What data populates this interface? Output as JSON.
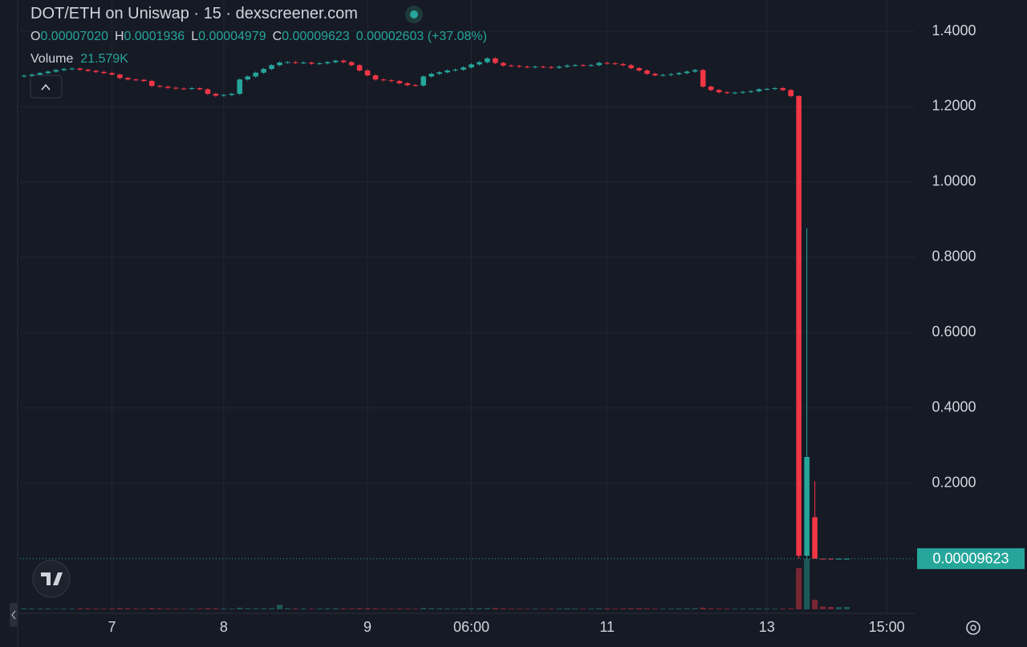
{
  "header": {
    "symbol": "DOT/ETH on Uniswap · 15 · dexscreener.com",
    "ohlc": [
      {
        "key": "O",
        "value": "0.00007020"
      },
      {
        "key": "H",
        "value": "0.0001936"
      },
      {
        "key": "L",
        "value": "0.00004979"
      },
      {
        "key": "C",
        "value": "0.00009623"
      }
    ],
    "change": "0.00002603 (+37.08%)",
    "volume_label": "Volume",
    "volume": "21.579K"
  },
  "chart_data": {
    "type": "candlestick",
    "up_color": "#26a69a",
    "down_color": "#f23645",
    "grid": true,
    "ylim": [
      -0.145,
      1.483
    ],
    "yticks": [
      {
        "value": 0.2,
        "label": "0.2000"
      },
      {
        "value": 0.4,
        "label": "0.4000"
      },
      {
        "value": 0.6,
        "label": "0.6000"
      },
      {
        "value": 0.8,
        "label": "0.8000"
      },
      {
        "value": 1.0,
        "label": "1.0000"
      },
      {
        "value": 1.2,
        "label": "1.2000"
      },
      {
        "value": 1.4,
        "label": "1.4000"
      }
    ],
    "last_price_label": "0.00009623",
    "categories": [
      null,
      null,
      null,
      null,
      null,
      null,
      null,
      null,
      null,
      null,
      null,
      "7",
      null,
      null,
      null,
      null,
      null,
      null,
      null,
      null,
      null,
      null,
      null,
      null,
      null,
      "8",
      null,
      null,
      null,
      null,
      null,
      null,
      null,
      null,
      null,
      null,
      null,
      null,
      null,
      null,
      null,
      null,
      null,
      "9",
      null,
      null,
      null,
      null,
      null,
      null,
      null,
      null,
      null,
      null,
      null,
      null,
      "06:00",
      null,
      null,
      null,
      null,
      null,
      null,
      null,
      null,
      null,
      null,
      null,
      null,
      null,
      null,
      null,
      null,
      "11",
      null,
      null,
      null,
      null,
      null,
      null,
      null,
      null,
      null,
      null,
      null,
      null,
      null,
      null,
      null,
      null,
      null,
      null,
      null,
      "13",
      null,
      null,
      null,
      null,
      null,
      null,
      null,
      null,
      null,
      null,
      null,
      null,
      null,
      null,
      "15:00",
      null,
      null,
      null
    ],
    "ohlc": [
      [
        1.28,
        1.285,
        1.277,
        1.282
      ],
      [
        1.282,
        1.288,
        1.279,
        1.285
      ],
      [
        1.285,
        1.292,
        1.282,
        1.289
      ],
      [
        1.289,
        1.296,
        1.286,
        1.293
      ],
      [
        1.293,
        1.3,
        1.29,
        1.297
      ],
      [
        1.297,
        1.303,
        1.294,
        1.3
      ],
      [
        1.3,
        1.304,
        1.297,
        1.301
      ],
      [
        1.301,
        1.304,
        1.295,
        1.298
      ],
      [
        1.298,
        1.301,
        1.292,
        1.295
      ],
      [
        1.295,
        1.298,
        1.289,
        1.292
      ],
      [
        1.292,
        1.295,
        1.286,
        1.289
      ],
      [
        1.289,
        1.292,
        1.282,
        1.285
      ],
      [
        1.285,
        1.288,
        1.273,
        1.276
      ],
      [
        1.276,
        1.279,
        1.269,
        1.272
      ],
      [
        1.272,
        1.275,
        1.268,
        1.271
      ],
      [
        1.271,
        1.274,
        1.265,
        1.268
      ],
      [
        1.268,
        1.271,
        1.252,
        1.255
      ],
      [
        1.255,
        1.258,
        1.25,
        1.253
      ],
      [
        1.253,
        1.256,
        1.247,
        1.25
      ],
      [
        1.25,
        1.253,
        1.245,
        1.248
      ],
      [
        1.248,
        1.251,
        1.244,
        1.247
      ],
      [
        1.247,
        1.252,
        1.244,
        1.249
      ],
      [
        1.249,
        1.252,
        1.243,
        1.246
      ],
      [
        1.246,
        1.249,
        1.231,
        1.234
      ],
      [
        1.234,
        1.237,
        1.226,
        1.229
      ],
      [
        1.229,
        1.234,
        1.226,
        1.231
      ],
      [
        1.231,
        1.237,
        1.228,
        1.234
      ],
      [
        1.234,
        1.275,
        1.231,
        1.272
      ],
      [
        1.272,
        1.283,
        1.269,
        1.28
      ],
      [
        1.28,
        1.293,
        1.277,
        1.29
      ],
      [
        1.29,
        1.303,
        1.287,
        1.3
      ],
      [
        1.3,
        1.313,
        1.297,
        1.31
      ],
      [
        1.31,
        1.32,
        1.307,
        1.317
      ],
      [
        1.317,
        1.321,
        1.314,
        1.318
      ],
      [
        1.318,
        1.321,
        1.313,
        1.316
      ],
      [
        1.316,
        1.32,
        1.313,
        1.317
      ],
      [
        1.317,
        1.32,
        1.311,
        1.314
      ],
      [
        1.314,
        1.318,
        1.311,
        1.315
      ],
      [
        1.315,
        1.321,
        1.312,
        1.318
      ],
      [
        1.318,
        1.325,
        1.315,
        1.322
      ],
      [
        1.322,
        1.325,
        1.315,
        1.318
      ],
      [
        1.318,
        1.321,
        1.307,
        1.31
      ],
      [
        1.31,
        1.313,
        1.293,
        1.296
      ],
      [
        1.296,
        1.299,
        1.28,
        1.283
      ],
      [
        1.283,
        1.286,
        1.269,
        1.272
      ],
      [
        1.272,
        1.275,
        1.267,
        1.27
      ],
      [
        1.27,
        1.273,
        1.265,
        1.268
      ],
      [
        1.268,
        1.271,
        1.259,
        1.262
      ],
      [
        1.262,
        1.265,
        1.254,
        1.257
      ],
      [
        1.257,
        1.26,
        1.253,
        1.256
      ],
      [
        1.256,
        1.283,
        1.253,
        1.28
      ],
      [
        1.28,
        1.29,
        1.277,
        1.287
      ],
      [
        1.287,
        1.294,
        1.284,
        1.291
      ],
      [
        1.291,
        1.299,
        1.288,
        1.296
      ],
      [
        1.296,
        1.301,
        1.293,
        1.298
      ],
      [
        1.298,
        1.307,
        1.295,
        1.304
      ],
      [
        1.304,
        1.315,
        1.301,
        1.312
      ],
      [
        1.312,
        1.321,
        1.309,
        1.318
      ],
      [
        1.318,
        1.331,
        1.315,
        1.328
      ],
      [
        1.328,
        1.331,
        1.313,
        1.316
      ],
      [
        1.316,
        1.319,
        1.306,
        1.309
      ],
      [
        1.309,
        1.312,
        1.305,
        1.308
      ],
      [
        1.308,
        1.311,
        1.303,
        1.306
      ],
      [
        1.306,
        1.309,
        1.302,
        1.305
      ],
      [
        1.305,
        1.309,
        1.302,
        1.306
      ],
      [
        1.306,
        1.309,
        1.302,
        1.305
      ],
      [
        1.305,
        1.308,
        1.3,
        1.303
      ],
      [
        1.303,
        1.309,
        1.3,
        1.306
      ],
      [
        1.306,
        1.312,
        1.303,
        1.309
      ],
      [
        1.309,
        1.313,
        1.306,
        1.31
      ],
      [
        1.31,
        1.313,
        1.306,
        1.309
      ],
      [
        1.309,
        1.313,
        1.306,
        1.31
      ],
      [
        1.31,
        1.319,
        1.307,
        1.316
      ],
      [
        1.316,
        1.319,
        1.312,
        1.315
      ],
      [
        1.315,
        1.318,
        1.31,
        1.313
      ],
      [
        1.313,
        1.316,
        1.307,
        1.31
      ],
      [
        1.31,
        1.313,
        1.299,
        1.302
      ],
      [
        1.302,
        1.305,
        1.293,
        1.296
      ],
      [
        1.296,
        1.299,
        1.284,
        1.287
      ],
      [
        1.287,
        1.29,
        1.28,
        1.283
      ],
      [
        1.283,
        1.287,
        1.28,
        1.284
      ],
      [
        1.284,
        1.289,
        1.281,
        1.286
      ],
      [
        1.286,
        1.292,
        1.283,
        1.289
      ],
      [
        1.289,
        1.296,
        1.286,
        1.293
      ],
      [
        1.293,
        1.3,
        1.29,
        1.297
      ],
      [
        1.297,
        1.3,
        1.25,
        1.253
      ],
      [
        1.253,
        1.256,
        1.241,
        1.244
      ],
      [
        1.244,
        1.247,
        1.235,
        1.238
      ],
      [
        1.238,
        1.241,
        1.233,
        1.236
      ],
      [
        1.236,
        1.24,
        1.233,
        1.237
      ],
      [
        1.237,
        1.242,
        1.234,
        1.239
      ],
      [
        1.239,
        1.244,
        1.236,
        1.241
      ],
      [
        1.241,
        1.249,
        1.238,
        1.246
      ],
      [
        1.246,
        1.25,
        1.243,
        1.247
      ],
      [
        1.247,
        1.252,
        1.244,
        1.249
      ],
      [
        1.249,
        1.252,
        1.241,
        1.244
      ],
      [
        1.244,
        1.247,
        1.225,
        1.228
      ],
      [
        1.228,
        1.23,
        0.0001,
        0.008
      ],
      [
        0.008,
        0.877,
        0.0001,
        0.27
      ],
      [
        0.11,
        0.206,
        0.0001,
        0.0001
      ],
      [
        0.0001,
        0.0002,
        5e-05,
        7e-05
      ],
      [
        7e-05,
        0.0001,
        5e-05,
        6e-05
      ],
      [
        6e-05,
        0.0001,
        5e-05,
        7.02e-05
      ],
      [
        7.02e-05,
        0.0001936,
        4.979e-05,
        9.623e-05
      ],
      null,
      null,
      null,
      null,
      null,
      null,
      null,
      null
    ],
    "volumes": [
      9000,
      7000,
      6000,
      8000,
      5000,
      7000,
      6000,
      9000,
      8000,
      7000,
      6000,
      8000,
      12000,
      9000,
      7000,
      6000,
      11000,
      8000,
      7000,
      6000,
      5000,
      6000,
      7000,
      10000,
      9000,
      7000,
      6000,
      14000,
      9000,
      8000,
      9000,
      10000,
      40000,
      9000,
      7000,
      8000,
      6000,
      7000,
      8000,
      9000,
      7000,
      8000,
      10000,
      11000,
      9000,
      7000,
      6000,
      8000,
      7000,
      6000,
      12000,
      9000,
      8000,
      7000,
      6000,
      8000,
      9000,
      10000,
      11000,
      12000,
      8000,
      7000,
      6000,
      5000,
      6000,
      5000,
      6000,
      7000,
      8000,
      7000,
      6000,
      7000,
      9000,
      8000,
      7000,
      8000,
      9000,
      10000,
      8000,
      7000,
      6000,
      7000,
      8000,
      9000,
      10000,
      15000,
      9000,
      8000,
      7000,
      6000,
      6000,
      7000,
      8000,
      7000,
      6000,
      7000,
      9000,
      370000,
      453000,
      86000,
      25000,
      22000,
      20000,
      21579,
      null,
      null,
      null,
      null,
      null,
      null,
      null,
      null
    ]
  }
}
